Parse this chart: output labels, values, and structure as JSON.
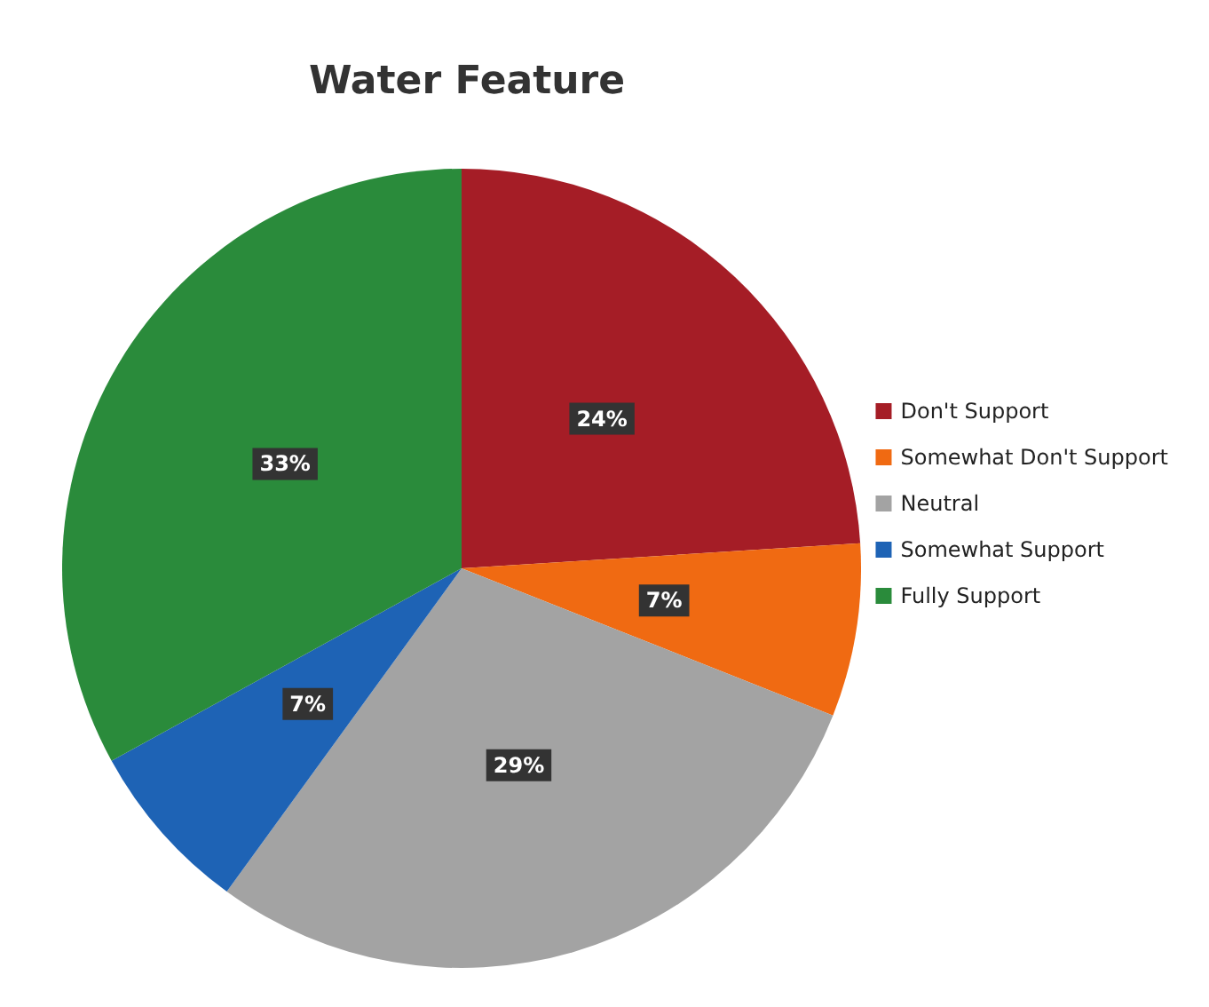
{
  "chart_data": {
    "type": "pie",
    "title": "Water Feature",
    "categories": [
      "Don't Support",
      "Somewhat Don't Support",
      "Neutral",
      "Somewhat Support",
      "Fully Support"
    ],
    "values": [
      24,
      7,
      29,
      7,
      33
    ],
    "colors": [
      "#a51d26",
      "#f06a12",
      "#a3a3a3",
      "#1e63b5",
      "#2a8b3b"
    ],
    "value_labels": [
      "24%",
      "7%",
      "29%",
      "7%",
      "33%"
    ],
    "legend": "right"
  }
}
